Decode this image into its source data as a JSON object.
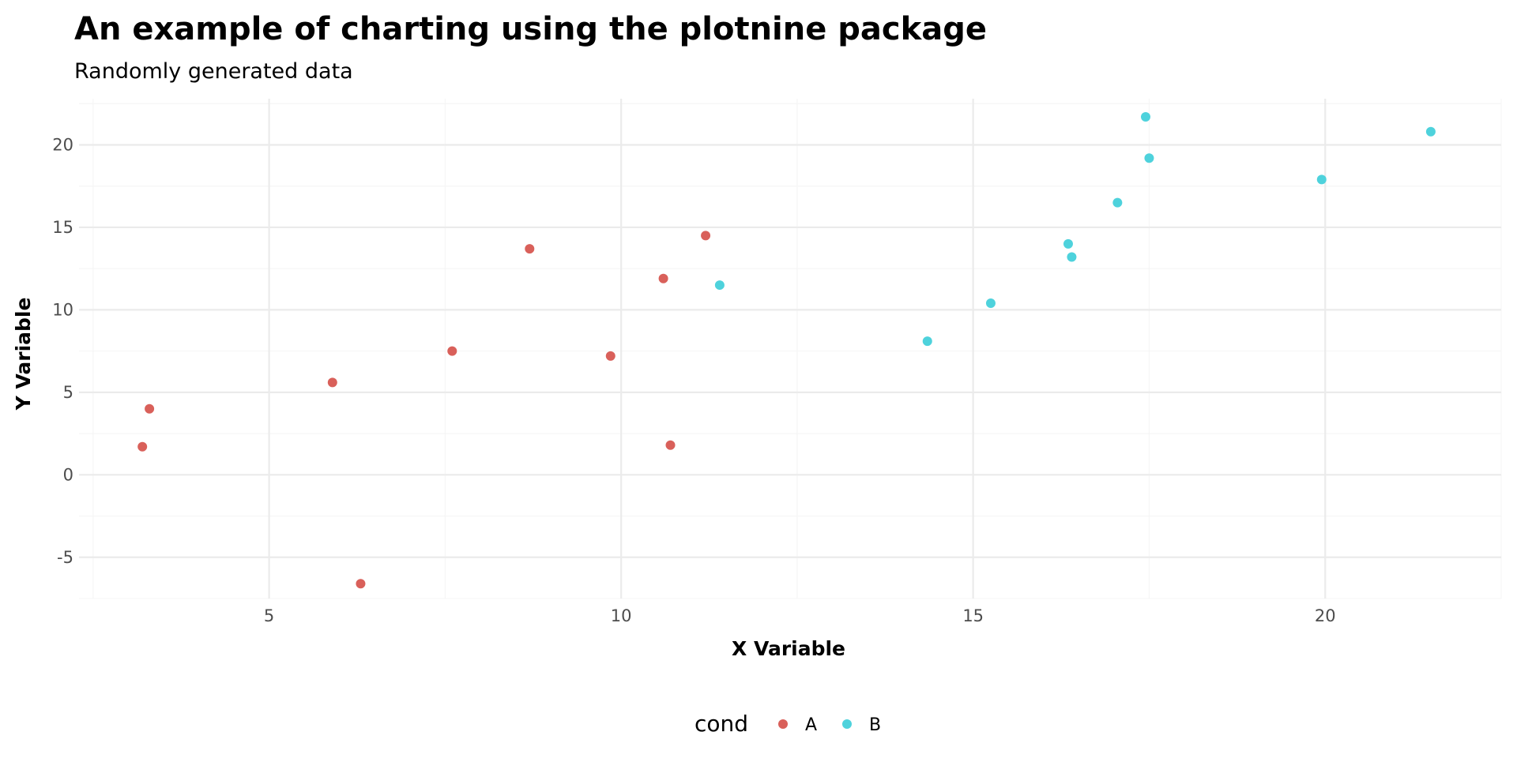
{
  "chart_data": {
    "type": "scatter",
    "title": "An example of charting using the plotnine package",
    "subtitle": "Randomly generated data",
    "xlabel": "X Variable",
    "ylabel": "Y Variable",
    "xlim": [
      2.3,
      22.5
    ],
    "ylim": [
      -7.5,
      22.8
    ],
    "x_ticks": [
      5,
      10,
      15,
      20
    ],
    "y_ticks": [
      -5,
      0,
      5,
      10,
      15,
      20
    ],
    "grid": true,
    "legend": {
      "title": "cond",
      "position": "bottom"
    },
    "series": [
      {
        "name": "A",
        "color": "#d9605a",
        "points": [
          {
            "x": 3.2,
            "y": 1.7
          },
          {
            "x": 3.3,
            "y": 4.0
          },
          {
            "x": 5.9,
            "y": 5.6
          },
          {
            "x": 6.3,
            "y": -6.6
          },
          {
            "x": 7.6,
            "y": 7.5
          },
          {
            "x": 8.7,
            "y": 13.7
          },
          {
            "x": 9.85,
            "y": 7.2
          },
          {
            "x": 10.6,
            "y": 11.9
          },
          {
            "x": 10.7,
            "y": 1.8
          },
          {
            "x": 11.2,
            "y": 14.5
          }
        ]
      },
      {
        "name": "B",
        "color": "#4ed2dc",
        "points": [
          {
            "x": 11.4,
            "y": 11.5
          },
          {
            "x": 14.35,
            "y": 8.1
          },
          {
            "x": 15.25,
            "y": 10.4
          },
          {
            "x": 16.35,
            "y": 14.0
          },
          {
            "x": 16.4,
            "y": 13.2
          },
          {
            "x": 17.05,
            "y": 16.5
          },
          {
            "x": 17.45,
            "y": 21.7
          },
          {
            "x": 17.5,
            "y": 19.2
          },
          {
            "x": 19.95,
            "y": 17.9
          },
          {
            "x": 21.5,
            "y": 20.8
          }
        ]
      }
    ]
  }
}
